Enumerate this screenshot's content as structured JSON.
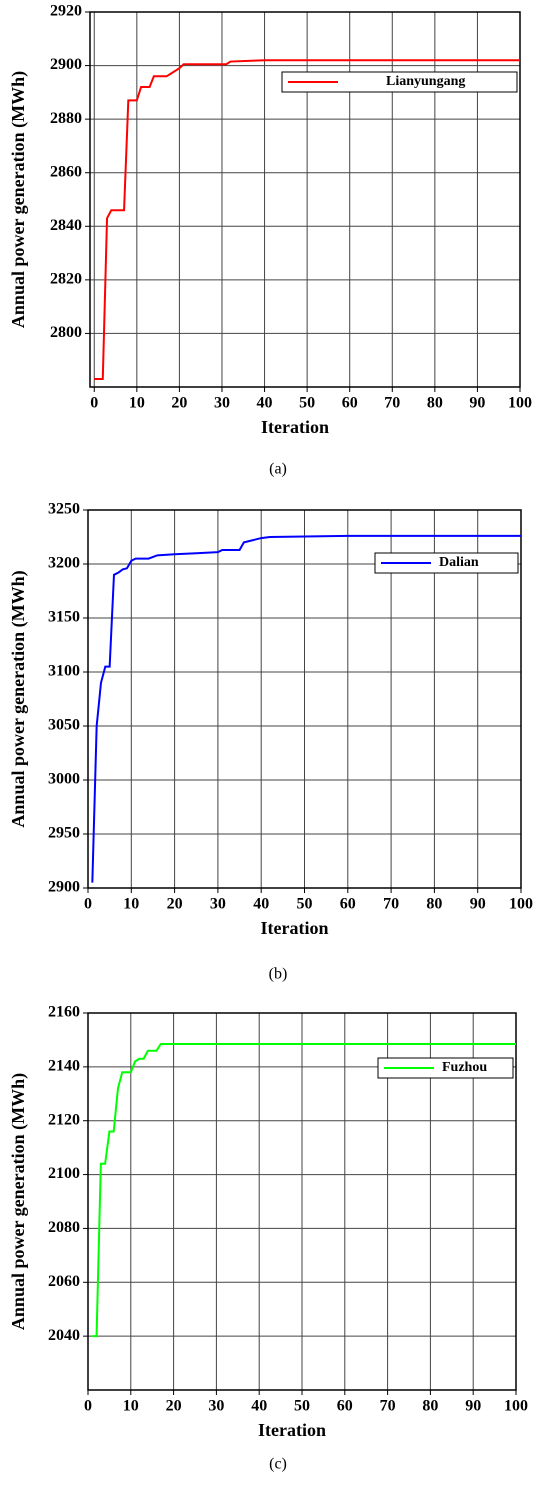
{
  "chart_data": [
    {
      "type": "line",
      "caption": "(a)",
      "xlabel": "Iteration",
      "ylabel": "Annual power generation  (MWh)",
      "x": [
        0,
        2,
        3,
        4,
        7,
        8,
        10,
        11,
        13,
        14,
        17,
        18,
        19,
        20,
        21,
        31,
        32,
        40,
        100
      ],
      "series": [
        {
          "name": "Lianyungang",
          "color": "#ff0000",
          "values": [
            2783,
            2783,
            2843,
            2846,
            2846,
            2887,
            2887,
            2892,
            2892,
            2896,
            2896,
            2897,
            2898,
            2899,
            2900.5,
            2900.5,
            2901.5,
            2902,
            2902
          ]
        }
      ],
      "xlim": [
        -1,
        100
      ],
      "ylim": [
        2780,
        2920
      ],
      "xticks": [
        0,
        10,
        20,
        30,
        40,
        50,
        60,
        70,
        80,
        90,
        100
      ],
      "yticks": [
        2800,
        2820,
        2840,
        2860,
        2880,
        2900,
        2920
      ],
      "grid": true,
      "legend": "upper right"
    },
    {
      "type": "line",
      "caption": "(b)",
      "xlabel": "Iteration",
      "ylabel": "Annual power generation  (MWh)",
      "x": [
        1,
        2,
        3,
        4,
        5,
        6,
        7,
        8,
        9,
        10,
        11,
        14,
        16,
        20,
        25,
        30,
        31,
        35,
        36,
        38,
        40,
        42,
        50,
        60,
        100
      ],
      "series": [
        {
          "name": "Dalian",
          "color": "#0000ff",
          "values": [
            2905,
            3050,
            3090,
            3105,
            3105,
            3190,
            3192,
            3195,
            3196,
            3203,
            3205,
            3205,
            3208,
            3209,
            3210,
            3211,
            3213,
            3213,
            3220,
            3222,
            3224,
            3225,
            3225.5,
            3226,
            3226
          ]
        }
      ],
      "xlim": [
        0,
        100
      ],
      "ylim": [
        2900,
        3250
      ],
      "xticks": [
        0,
        10,
        20,
        30,
        40,
        50,
        60,
        70,
        80,
        90,
        100
      ],
      "yticks": [
        2900,
        2950,
        3000,
        3050,
        3100,
        3150,
        3200,
        3250
      ],
      "grid": true,
      "legend": "upper right"
    },
    {
      "type": "line",
      "caption": "(c)",
      "xlabel": "Iteration",
      "ylabel": "Annual power generation  (MWh)",
      "x": [
        1,
        2,
        3,
        4,
        5,
        6,
        7,
        8,
        10,
        11,
        12,
        13,
        14,
        16,
        17,
        100
      ],
      "series": [
        {
          "name": "Fuzhou",
          "color": "#00ff00",
          "values": [
            2040,
            2040,
            2104,
            2104,
            2116,
            2116,
            2132,
            2138,
            2138,
            2142,
            2143,
            2143,
            2146,
            2146,
            2148.5,
            2148.5
          ]
        }
      ],
      "xlim": [
        0,
        100
      ],
      "ylim": [
        2020,
        2160
      ],
      "xticks": [
        0,
        10,
        20,
        30,
        40,
        50,
        60,
        70,
        80,
        90,
        100
      ],
      "yticks": [
        2040,
        2060,
        2080,
        2100,
        2120,
        2140,
        2160
      ],
      "grid": true,
      "legend": "upper right"
    }
  ]
}
